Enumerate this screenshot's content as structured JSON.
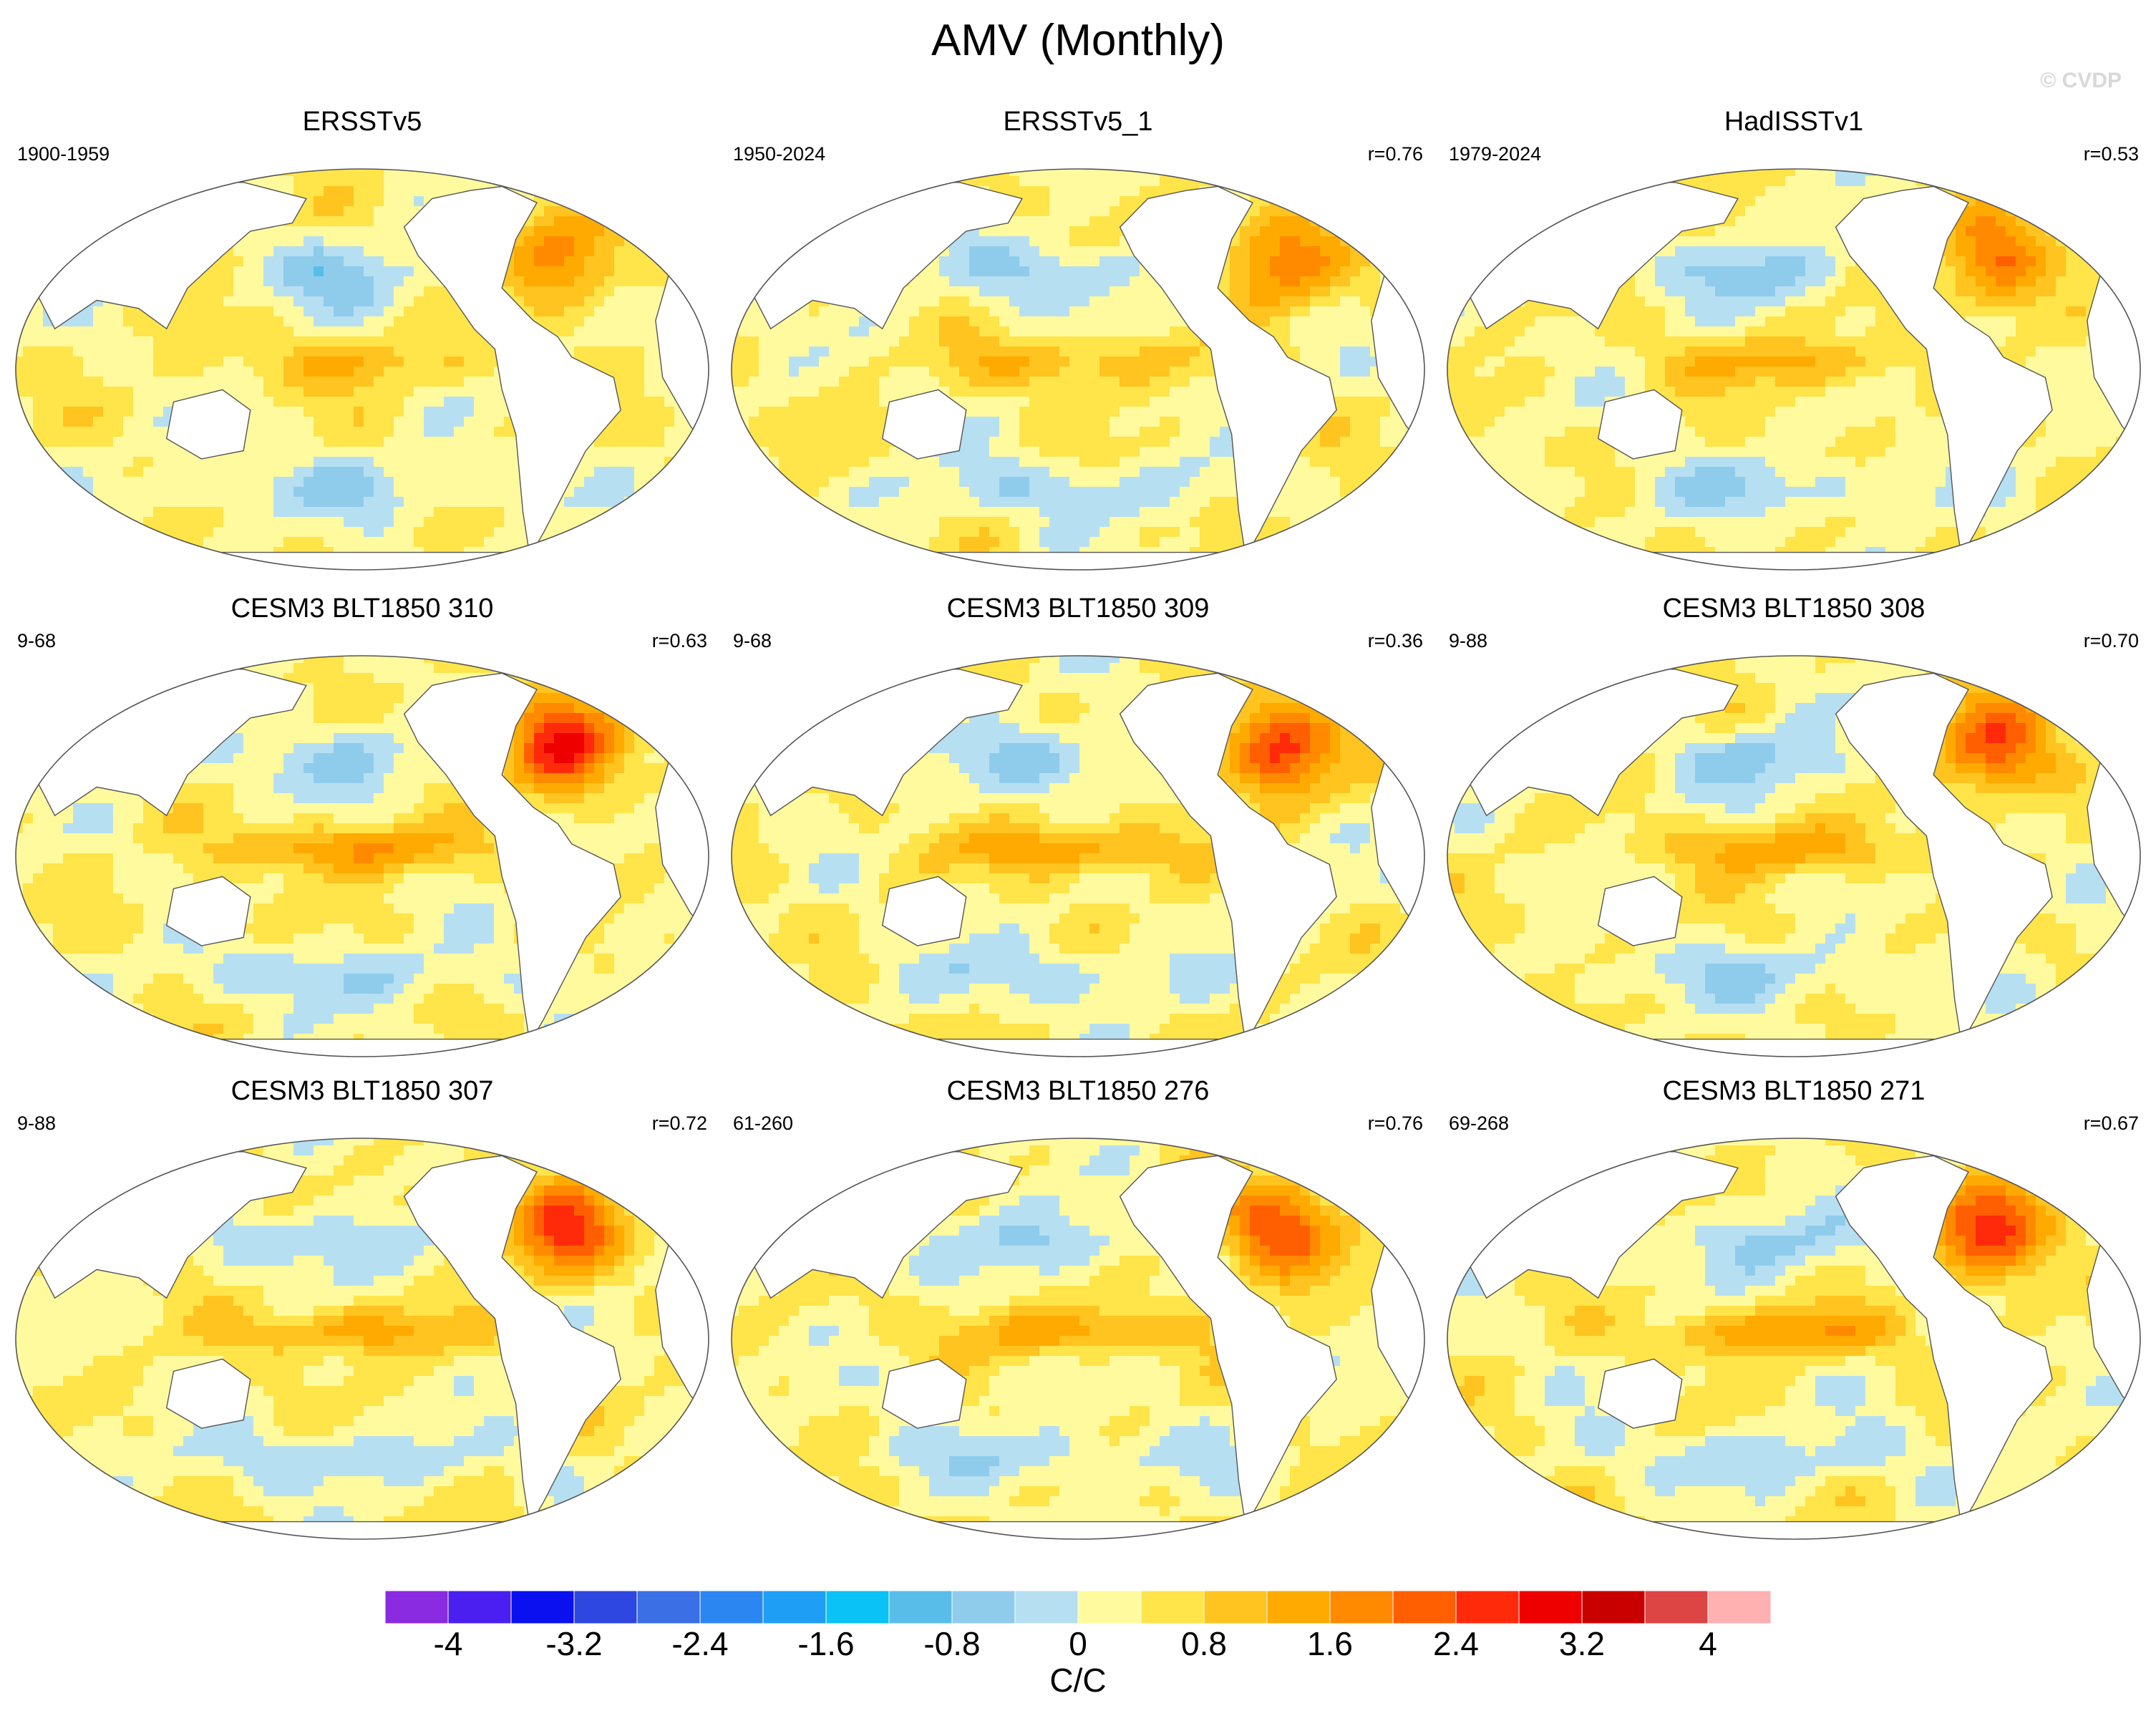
{
  "title": "AMV (Monthly)",
  "watermark": "© CVDP",
  "panels": [
    {
      "title": "ERSSTv5",
      "left_text": "1900-1959",
      "right_text": "",
      "amp": 0.9,
      "seed": 1
    },
    {
      "title": "ERSSTv5_1",
      "left_text": "1950-2024",
      "right_text": "r=0.76",
      "amp": 1.0,
      "seed": 2
    },
    {
      "title": "HadISSTv1",
      "left_text": "1979-2024",
      "right_text": "r=0.53",
      "amp": 1.1,
      "seed": 3
    },
    {
      "title": "CESM3 BLT1850 310",
      "left_text": "9-68",
      "right_text": "r=0.63",
      "amp": 1.5,
      "seed": 4
    },
    {
      "title": "CESM3 BLT1850 309",
      "left_text": "9-68",
      "right_text": "r=0.36",
      "amp": 1.4,
      "seed": 5
    },
    {
      "title": "CESM3 BLT1850 308",
      "left_text": "9-88",
      "right_text": "r=0.70",
      "amp": 1.3,
      "seed": 6
    },
    {
      "title": "CESM3 BLT1850 307",
      "left_text": "9-88",
      "right_text": "r=0.72",
      "amp": 1.3,
      "seed": 7
    },
    {
      "title": "CESM3 BLT1850 276",
      "left_text": "61-260",
      "right_text": "r=0.76",
      "amp": 1.3,
      "seed": 8
    },
    {
      "title": "CESM3 BLT1850 271",
      "left_text": "69-268",
      "right_text": "r=0.67",
      "amp": 1.4,
      "seed": 9
    }
  ],
  "colorbar": {
    "colors": [
      "#8a2be2",
      "#4b1ff0",
      "#0a10f0",
      "#2e47e0",
      "#3a6fe6",
      "#2b86f2",
      "#1f9ef5",
      "#0ac2f5",
      "#59bdea",
      "#8fccec",
      "#b7dff2",
      "#fffa9e",
      "#ffe44a",
      "#ffc41f",
      "#ffaa00",
      "#ff8a00",
      "#ff5f00",
      "#ff2a0a",
      "#ee0000",
      "#c90000",
      "#dd4444",
      "#ffb0b0"
    ],
    "levels": [
      -4.0,
      -3.6,
      -3.2,
      -2.8,
      -2.4,
      -2.0,
      -1.6,
      -1.2,
      -0.8,
      -0.4,
      0,
      0.4,
      0.8,
      1.2,
      1.6,
      2.0,
      2.4,
      2.8,
      3.2,
      3.6,
      4.0
    ],
    "labels": [
      "-4",
      "-3.2",
      "-2.4",
      "-1.6",
      "-0.8",
      "0",
      "0.8",
      "1.6",
      "2.4",
      "3.2",
      "4"
    ],
    "units": "C/C"
  },
  "land_color": "#ffffff",
  "coast_color": "#555555"
}
